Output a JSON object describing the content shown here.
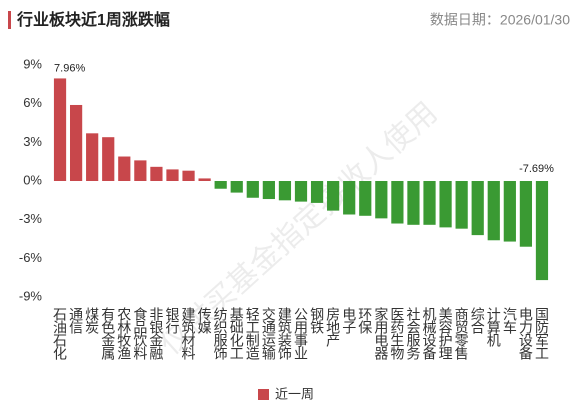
{
  "header": {
    "title": "行业板块近1周涨跌幅",
    "date": "数据日期：2026/01/30"
  },
  "watermark": "仅供买基金指定接收人使用",
  "chart_data": {
    "type": "bar",
    "categories": [
      "石油石化",
      "通信",
      "煤炭",
      "有色金属",
      "农林牧渔",
      "食品饮料",
      "非银金融",
      "银行",
      "建筑材料",
      "传媒",
      "纺织服饰",
      "基础化工",
      "轻工制造",
      "交通运输",
      "建筑装饰",
      "公用事业",
      "钢铁",
      "房地产",
      "电子",
      "环保",
      "家用电器",
      "医药生物",
      "社会服务",
      "机械设备",
      "美容护理",
      "商贸零售",
      "综合",
      "计算机",
      "汽车",
      "电力设备",
      "国防军工"
    ],
    "series": [
      {
        "name": "近一周",
        "color": "#c8474b",
        "negative_color": "#3a9a33",
        "values": [
          7.96,
          5.9,
          3.7,
          3.4,
          1.9,
          1.6,
          1.1,
          0.9,
          0.8,
          0.2,
          -0.6,
          -0.9,
          -1.3,
          -1.4,
          -1.5,
          -1.6,
          -1.7,
          -2.3,
          -2.6,
          -2.7,
          -2.9,
          -3.3,
          -3.4,
          -3.4,
          -3.6,
          -3.7,
          -4.2,
          -4.6,
          -4.7,
          -5.1,
          -7.69
        ],
        "value_labels": [
          "7.96%",
          null,
          null,
          null,
          null,
          null,
          null,
          null,
          null,
          null,
          null,
          null,
          null,
          null,
          null,
          null,
          null,
          null,
          null,
          null,
          null,
          null,
          null,
          null,
          null,
          null,
          null,
          null,
          null,
          null,
          "-7.69%"
        ]
      }
    ],
    "ylim": [
      -9.6,
      9.6
    ],
    "yticks": [
      {
        "value": 9,
        "label": "9%"
      },
      {
        "value": 6,
        "label": "6%"
      },
      {
        "value": 3,
        "label": "3%"
      },
      {
        "value": 0,
        "label": "0%"
      },
      {
        "value": -3,
        "label": "-3%"
      },
      {
        "value": -6,
        "label": "-6%"
      },
      {
        "value": -9,
        "label": "-9%"
      }
    ],
    "grid": false,
    "legend": "bottom"
  }
}
